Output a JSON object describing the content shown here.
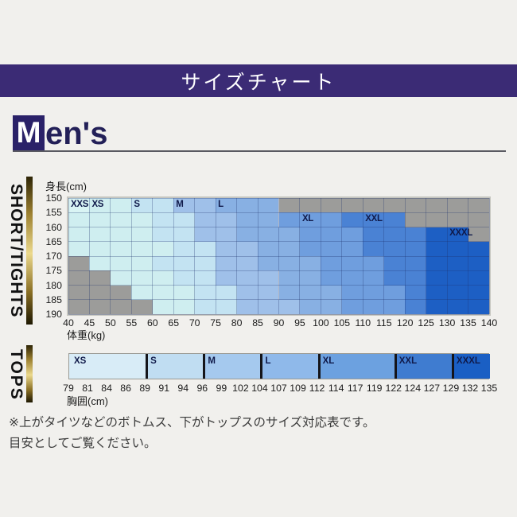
{
  "header": {
    "title": "サイズチャート",
    "bg_color": "#3b2b75"
  },
  "mens": {
    "initial": "M",
    "rest": "en's"
  },
  "shorts_section": {
    "side_label": "SHORT/TIGHTS",
    "y_axis_title": "身長(cm)",
    "x_axis_title": "体重(kg)"
  },
  "tops_section": {
    "side_label": "TOPS",
    "x_axis_title": "胸囲(cm)"
  },
  "footnote": {
    "line1": "※上がタイツなどのボトムス、下がトップスのサイズ対応表です。",
    "line2": "目安としてご覧ください。"
  },
  "chart_data": [
    {
      "type": "heatmap",
      "title": "SHORT/TIGHTS size grid",
      "xlabel": "体重(kg)",
      "ylabel": "身長(cm)",
      "x_ticks": [
        40,
        45,
        50,
        55,
        60,
        65,
        70,
        75,
        80,
        85,
        90,
        95,
        100,
        105,
        110,
        115,
        120,
        125,
        130,
        135,
        140
      ],
      "y_ticks": [
        150,
        155,
        160,
        165,
        170,
        175,
        180,
        185,
        190
      ],
      "sizes": [
        "XXS",
        "XS",
        "S",
        "M",
        "L",
        "XL",
        "XXL",
        "XXXL"
      ],
      "colors": {
        "XXS": "#d9f4f4",
        "XS": "#cfeef0",
        "S": "#c3e3f2",
        "M": "#9fc0e9",
        "L": "#88b0e3",
        "XL": "#6f9ede",
        "XXL": "#4a82d4",
        "XXXL": "#1d5fc4",
        "NA": "#9c9c9a"
      },
      "rows": [
        {
          "height_range": "150-155",
          "segments": [
            {
              "size": "XXS",
              "from": 40,
              "to": 45
            },
            {
              "size": "XS",
              "from": 45,
              "to": 55
            },
            {
              "size": "S",
              "from": 55,
              "to": 65
            },
            {
              "size": "M",
              "from": 65,
              "to": 75
            },
            {
              "size": "L",
              "from": 75,
              "to": 90
            },
            {
              "size": "NA",
              "from": 90,
              "to": 140
            }
          ]
        },
        {
          "height_range": "155-160",
          "segments": [
            {
              "size": "XS",
              "from": 40,
              "to": 60
            },
            {
              "size": "S",
              "from": 60,
              "to": 70
            },
            {
              "size": "M",
              "from": 70,
              "to": 80
            },
            {
              "size": "L",
              "from": 80,
              "to": 90
            },
            {
              "size": "XL",
              "from": 90,
              "to": 105
            },
            {
              "size": "XXL",
              "from": 105,
              "to": 120
            },
            {
              "size": "NA",
              "from": 120,
              "to": 140
            }
          ]
        },
        {
          "height_range": "160-165",
          "segments": [
            {
              "size": "XS",
              "from": 40,
              "to": 60
            },
            {
              "size": "S",
              "from": 60,
              "to": 70
            },
            {
              "size": "M",
              "from": 70,
              "to": 80
            },
            {
              "size": "L",
              "from": 80,
              "to": 95
            },
            {
              "size": "XL",
              "from": 95,
              "to": 110
            },
            {
              "size": "XXL",
              "from": 110,
              "to": 125
            },
            {
              "size": "XXXL",
              "from": 125,
              "to": 135
            },
            {
              "size": "NA",
              "from": 135,
              "to": 140
            }
          ]
        },
        {
          "height_range": "165-170",
          "segments": [
            {
              "size": "XS",
              "from": 40,
              "to": 65
            },
            {
              "size": "S",
              "from": 65,
              "to": 75
            },
            {
              "size": "M",
              "from": 75,
              "to": 85
            },
            {
              "size": "L",
              "from": 85,
              "to": 95
            },
            {
              "size": "XL",
              "from": 95,
              "to": 110
            },
            {
              "size": "XXL",
              "from": 110,
              "to": 125
            },
            {
              "size": "XXXL",
              "from": 125,
              "to": 140
            }
          ]
        },
        {
          "height_range": "170-175",
          "segments": [
            {
              "size": "NA",
              "from": 40,
              "to": 45
            },
            {
              "size": "XS",
              "from": 45,
              "to": 60
            },
            {
              "size": "S",
              "from": 60,
              "to": 75
            },
            {
              "size": "M",
              "from": 75,
              "to": 85
            },
            {
              "size": "L",
              "from": 85,
              "to": 100
            },
            {
              "size": "XL",
              "from": 100,
              "to": 115
            },
            {
              "size": "XXL",
              "from": 115,
              "to": 125
            },
            {
              "size": "XXXL",
              "from": 125,
              "to": 140
            }
          ]
        },
        {
          "height_range": "175-180",
          "segments": [
            {
              "size": "NA",
              "from": 40,
              "to": 50
            },
            {
              "size": "XS",
              "from": 50,
              "to": 65
            },
            {
              "size": "S",
              "from": 65,
              "to": 75
            },
            {
              "size": "M",
              "from": 75,
              "to": 90
            },
            {
              "size": "L",
              "from": 90,
              "to": 100
            },
            {
              "size": "XL",
              "from": 100,
              "to": 115
            },
            {
              "size": "XXL",
              "from": 115,
              "to": 125
            },
            {
              "size": "XXXL",
              "from": 125,
              "to": 140
            }
          ]
        },
        {
          "height_range": "180-185",
          "segments": [
            {
              "size": "NA",
              "from": 40,
              "to": 55
            },
            {
              "size": "XS",
              "from": 55,
              "to": 70
            },
            {
              "size": "S",
              "from": 70,
              "to": 80
            },
            {
              "size": "M",
              "from": 80,
              "to": 90
            },
            {
              "size": "L",
              "from": 90,
              "to": 105
            },
            {
              "size": "XL",
              "from": 105,
              "to": 120
            },
            {
              "size": "XXL",
              "from": 120,
              "to": 125
            },
            {
              "size": "XXXL",
              "from": 125,
              "to": 140
            }
          ]
        },
        {
          "height_range": "185-190",
          "segments": [
            {
              "size": "NA",
              "from": 40,
              "to": 60
            },
            {
              "size": "XS",
              "from": 60,
              "to": 70
            },
            {
              "size": "S",
              "from": 70,
              "to": 80
            },
            {
              "size": "M",
              "from": 80,
              "to": 95
            },
            {
              "size": "L",
              "from": 95,
              "to": 105
            },
            {
              "size": "XL",
              "from": 105,
              "to": 120
            },
            {
              "size": "XXL",
              "from": 120,
              "to": 125
            },
            {
              "size": "XXXL",
              "from": 125,
              "to": 140
            }
          ]
        }
      ],
      "size_labels": [
        {
          "size": "XXS",
          "at_kg": 40,
          "row": 0
        },
        {
          "size": "XS",
          "at_kg": 45,
          "row": 0
        },
        {
          "size": "S",
          "at_kg": 55,
          "row": 0
        },
        {
          "size": "M",
          "at_kg": 65,
          "row": 0
        },
        {
          "size": "L",
          "at_kg": 75,
          "row": 0
        },
        {
          "size": "XL",
          "at_kg": 95,
          "row": 1
        },
        {
          "size": "XXL",
          "at_kg": 110,
          "row": 1
        },
        {
          "size": "XXXL",
          "at_kg": 130,
          "row": 2
        }
      ]
    },
    {
      "type": "bar",
      "title": "TOPS size bar",
      "xlabel": "胸囲(cm)",
      "ticks": [
        79,
        81,
        84,
        86,
        89,
        91,
        94,
        96,
        99,
        102,
        104,
        107,
        109,
        112,
        114,
        117,
        119,
        122,
        124,
        127,
        129,
        132,
        135
      ],
      "segments": [
        {
          "size": "XS",
          "from": 79,
          "to": 89,
          "color": "#d8ecf7"
        },
        {
          "size": "S",
          "from": 89,
          "to": 96,
          "color": "#c0ddf2"
        },
        {
          "size": "M",
          "from": 96,
          "to": 104,
          "color": "#a5c9ee"
        },
        {
          "size": "L",
          "from": 104,
          "to": 112,
          "color": "#8fb9ea"
        },
        {
          "size": "XL",
          "from": 112,
          "to": 122,
          "color": "#6ca1e0"
        },
        {
          "size": "XXL",
          "from": 122,
          "to": 129,
          "color": "#3f7cd0"
        },
        {
          "size": "XXXL",
          "from": 129,
          "to": 135,
          "color": "#1a5fc4"
        }
      ]
    }
  ]
}
